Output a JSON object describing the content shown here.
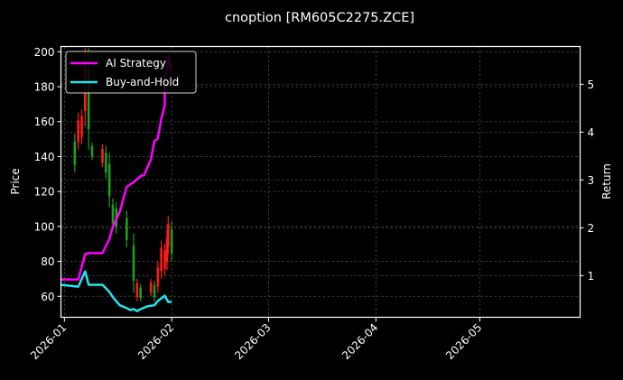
{
  "chart_data": {
    "type": "line",
    "title": "cnoption [RM605C2275.ZCE]",
    "xlabel": "",
    "ylabel": "Price",
    "ylabel_right": "Return",
    "background": "#000000",
    "grid": true,
    "legend": {
      "position": "upper left",
      "entries": [
        {
          "label": "AI Strategy",
          "color": "#ff00ff"
        },
        {
          "label": "Buy-and-Hold",
          "color": "#22e5f0"
        }
      ]
    },
    "x_axis": {
      "type": "date",
      "range": [
        "2025-12-31",
        "2026-05-30"
      ],
      "ticks": [
        "2026-01",
        "2026-02",
        "2026-03",
        "2026-04",
        "2026-05"
      ]
    },
    "y_axis_left": {
      "label": "Price",
      "range": [
        48,
        203
      ],
      "ticks": [
        60,
        80,
        100,
        120,
        140,
        160,
        180,
        200
      ]
    },
    "y_axis_right": {
      "label": "Return",
      "range": [
        0.13,
        5.79
      ],
      "ticks": [
        1,
        2,
        3,
        4,
        5
      ]
    },
    "candlesticks": {
      "up_color": "#1f9e1f",
      "down_color": "#ff1a1a",
      "bars": [
        {
          "date": "2026-01-04",
          "high": 153,
          "low": 131,
          "dir": "up"
        },
        {
          "date": "2026-01-05",
          "high": 165,
          "low": 144,
          "dir": "down"
        },
        {
          "date": "2026-01-06",
          "high": 167,
          "low": 147,
          "dir": "down"
        },
        {
          "date": "2026-01-07",
          "high": 202,
          "low": 157,
          "dir": "down"
        },
        {
          "date": "2026-01-08",
          "high": 202,
          "low": 144,
          "dir": "up"
        },
        {
          "date": "2026-01-09",
          "high": 148,
          "low": 138,
          "dir": "up"
        },
        {
          "date": "2026-01-12",
          "high": 147,
          "low": 134,
          "dir": "down"
        },
        {
          "date": "2026-01-13",
          "high": 146,
          "low": 127,
          "dir": "up"
        },
        {
          "date": "2026-01-14",
          "high": 142,
          "low": 111,
          "dir": "up"
        },
        {
          "date": "2026-01-15",
          "high": 116,
          "low": 98,
          "dir": "up"
        },
        {
          "date": "2026-01-16",
          "high": 114,
          "low": 96,
          "dir": "up"
        },
        {
          "date": "2026-01-19",
          "high": 109,
          "low": 88,
          "dir": "up"
        },
        {
          "date": "2026-01-21",
          "high": 96,
          "low": 62,
          "dir": "up"
        },
        {
          "date": "2026-01-22",
          "high": 70,
          "low": 57,
          "dir": "down"
        },
        {
          "date": "2026-01-23",
          "high": 67,
          "low": 57,
          "dir": "up"
        },
        {
          "date": "2026-01-26",
          "high": 70,
          "low": 60,
          "dir": "down"
        },
        {
          "date": "2026-01-27",
          "high": 69,
          "low": 57,
          "dir": "up"
        },
        {
          "date": "2026-01-28",
          "high": 80,
          "low": 62,
          "dir": "down"
        },
        {
          "date": "2026-01-29",
          "high": 92,
          "low": 70,
          "dir": "down"
        },
        {
          "date": "2026-01-30",
          "high": 90,
          "low": 72,
          "dir": "down"
        },
        {
          "date": "2026-01-30",
          "high": 98,
          "low": 75,
          "dir": "down"
        },
        {
          "date": "2026-01-31",
          "high": 106,
          "low": 84,
          "dir": "down"
        },
        {
          "date": "2026-02-01",
          "high": 103,
          "low": 80,
          "dir": "up"
        }
      ]
    },
    "series": [
      {
        "name": "AI Strategy",
        "axis": "right",
        "color": "#ff00ff",
        "x": [
          "2025-12-31",
          "2026-01-05",
          "2026-01-07",
          "2026-01-08",
          "2026-01-12",
          "2026-01-14",
          "2026-01-15",
          "2026-01-17",
          "2026-01-19",
          "2026-01-20",
          "2026-01-21",
          "2026-01-23",
          "2026-01-24",
          "2026-01-26",
          "2026-01-27",
          "2026-01-28",
          "2026-01-29",
          "2026-01-30",
          "2026-01-30",
          "2026-01-31",
          "2026-01-31",
          "2026-02-01"
        ],
        "values": [
          0.92,
          0.92,
          1.45,
          1.47,
          1.47,
          1.77,
          2.02,
          2.34,
          2.85,
          2.91,
          2.95,
          3.08,
          3.1,
          3.43,
          3.81,
          3.87,
          4.28,
          4.56,
          5.13,
          5.42,
          5.6,
          5.27
        ]
      },
      {
        "name": "Buy-and-Hold",
        "axis": "right",
        "color": "#22e5f0",
        "x": [
          "2025-12-31",
          "2026-01-05",
          "2026-01-07",
          "2026-01-08",
          "2026-01-12",
          "2026-01-14",
          "2026-01-15",
          "2026-01-17",
          "2026-01-19",
          "2026-01-20",
          "2026-01-21",
          "2026-01-22",
          "2026-01-23",
          "2026-01-25",
          "2026-01-27",
          "2026-01-28",
          "2026-01-30",
          "2026-01-31",
          "2026-02-01"
        ],
        "values": [
          0.81,
          0.77,
          1.09,
          0.81,
          0.81,
          0.66,
          0.55,
          0.38,
          0.32,
          0.28,
          0.3,
          0.26,
          0.3,
          0.36,
          0.38,
          0.47,
          0.58,
          0.45,
          0.45
        ]
      }
    ]
  }
}
